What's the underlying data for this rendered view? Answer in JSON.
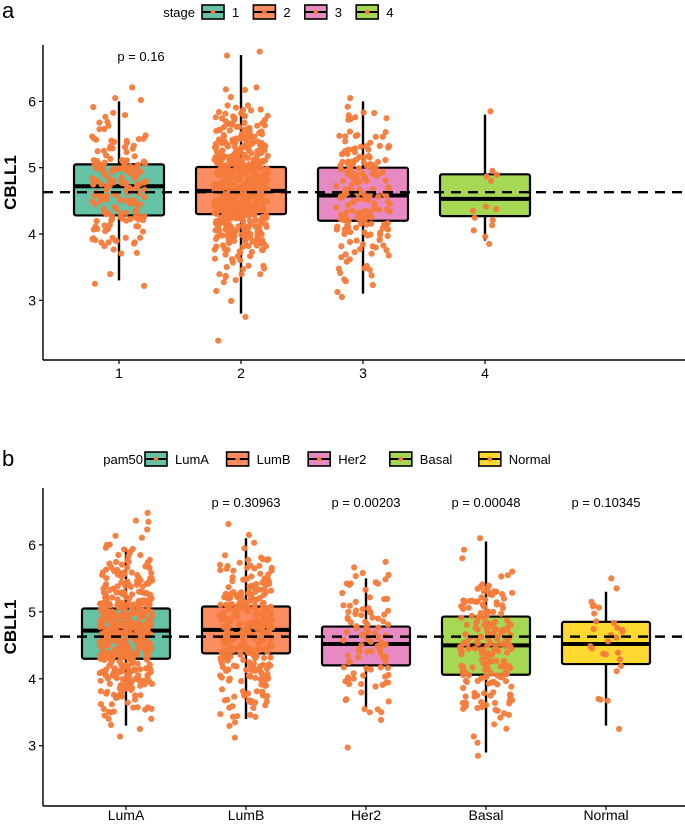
{
  "chart_data": [
    {
      "type": "boxplot",
      "panel_label": "a",
      "legend_title": "stage",
      "ylabel": "CBLL1",
      "xlabel": "",
      "ylim": [
        2.1,
        6.85
      ],
      "yticks": [
        3,
        4,
        5,
        6
      ],
      "reference_line": 4.63,
      "point_color": "#f47b3a",
      "categories": [
        "1",
        "2",
        "3",
        "4"
      ],
      "colors": [
        "#66c2a5",
        "#fc8d62",
        "#e78ac3",
        "#a6d854"
      ],
      "boxes": [
        {
          "name": "1",
          "min": 3.3,
          "q1": 4.28,
          "median": 4.72,
          "q3": 5.05,
          "max": 6.0,
          "n": 180,
          "spread": 0.55
        },
        {
          "name": "2",
          "min": 2.8,
          "q1": 4.3,
          "median": 4.65,
          "q3": 5.01,
          "max": 6.7,
          "n": 520,
          "spread": 0.6
        },
        {
          "name": "3",
          "min": 3.1,
          "q1": 4.2,
          "median": 4.58,
          "q3": 5.0,
          "max": 6.0,
          "n": 200,
          "spread": 0.6
        },
        {
          "name": "4",
          "min": 3.9,
          "q1": 4.27,
          "median": 4.53,
          "q3": 4.9,
          "max": 5.8,
          "n": 14,
          "spread": 0.35
        }
      ],
      "p_values": [
        {
          "category": "1",
          "label": "p = 0.16"
        }
      ]
    },
    {
      "type": "boxplot",
      "panel_label": "b",
      "legend_title": "pam50",
      "ylabel": "CBLL1",
      "xlabel": "",
      "ylim": [
        2.1,
        6.85
      ],
      "yticks": [
        3,
        4,
        5,
        6
      ],
      "reference_line": 4.63,
      "point_color": "#f47b3a",
      "categories": [
        "LumA",
        "LumB",
        "Her2",
        "Basal",
        "Normal"
      ],
      "colors": [
        "#66c2a5",
        "#fc8d62",
        "#e78ac3",
        "#a6d854",
        "#ffd92f"
      ],
      "boxes": [
        {
          "name": "LumA",
          "min": 3.3,
          "q1": 4.3,
          "median": 4.72,
          "q3": 5.05,
          "max": 5.95,
          "n": 420,
          "spread": 0.6
        },
        {
          "name": "LumB",
          "min": 3.4,
          "q1": 4.38,
          "median": 4.73,
          "q3": 5.08,
          "max": 6.1,
          "n": 320,
          "spread": 0.6
        },
        {
          "name": "Her2",
          "min": 3.55,
          "q1": 4.2,
          "median": 4.52,
          "q3": 4.78,
          "max": 5.5,
          "n": 100,
          "spread": 0.55
        },
        {
          "name": "Basal",
          "min": 2.9,
          "q1": 4.06,
          "median": 4.5,
          "q3": 4.93,
          "max": 6.05,
          "n": 200,
          "spread": 0.62
        },
        {
          "name": "Normal",
          "min": 3.3,
          "q1": 4.22,
          "median": 4.52,
          "q3": 4.85,
          "max": 5.3,
          "n": 28,
          "spread": 0.45
        }
      ],
      "p_values": [
        {
          "category": "LumB",
          "label": "p = 0.30963"
        },
        {
          "category": "Her2",
          "label": "p = 0.00203"
        },
        {
          "category": "Basal",
          "label": "p = 0.00048"
        },
        {
          "category": "Normal",
          "label": "p = 0.10345"
        }
      ]
    }
  ]
}
